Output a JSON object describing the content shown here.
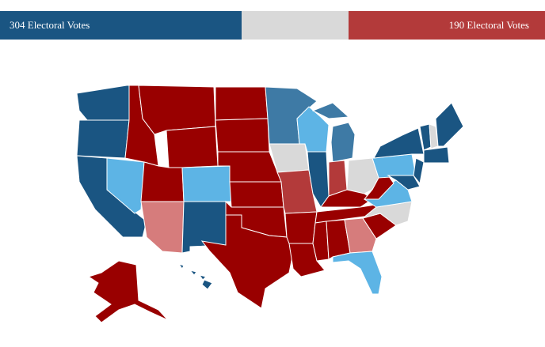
{
  "header": {
    "left": "304 Electoral Votes",
    "right": "190 Electoral Votes"
  }
}
